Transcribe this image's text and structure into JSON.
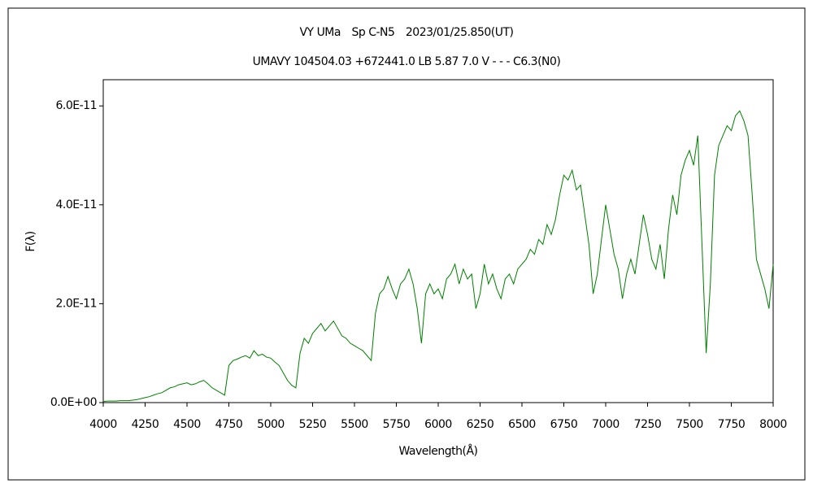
{
  "chart_data": {
    "type": "line",
    "title": "VY UMa　Sp C-N5　2023/01/25.850(UT)",
    "subtitle": "UMAVY 104504.03 +672441.0 LB 5.87 7.0 V - - - C6.3(N0)",
    "xlabel": "Wavelength(Å)",
    "ylabel": "F(λ)",
    "color": "#008000",
    "xlim": [
      4000,
      8000
    ],
    "ylim": [
      0,
      6.53e-11
    ],
    "xticks": [
      4000,
      4250,
      4500,
      4750,
      5000,
      5250,
      5500,
      5750,
      6000,
      6250,
      6500,
      6750,
      7000,
      7250,
      7500,
      7750,
      8000
    ],
    "yticks": [
      {
        "value": 0,
        "label": "0.0E+00"
      },
      {
        "value": 2e-11,
        "label": "2.0E-11"
      },
      {
        "value": 4e-11,
        "label": "4.0E-11"
      },
      {
        "value": 6e-11,
        "label": "6.0E-11"
      }
    ],
    "x": [
      4000,
      4025,
      4050,
      4075,
      4100,
      4125,
      4150,
      4175,
      4200,
      4225,
      4250,
      4275,
      4300,
      4325,
      4350,
      4375,
      4400,
      4425,
      4450,
      4475,
      4500,
      4525,
      4550,
      4575,
      4600,
      4625,
      4650,
      4675,
      4700,
      4725,
      4750,
      4775,
      4800,
      4825,
      4850,
      4875,
      4900,
      4925,
      4950,
      4975,
      5000,
      5025,
      5050,
      5075,
      5100,
      5125,
      5150,
      5175,
      5200,
      5225,
      5250,
      5275,
      5300,
      5325,
      5350,
      5375,
      5400,
      5425,
      5450,
      5475,
      5500,
      5525,
      5550,
      5575,
      5600,
      5625,
      5650,
      5675,
      5700,
      5725,
      5750,
      5775,
      5800,
      5825,
      5850,
      5875,
      5900,
      5925,
      5950,
      5975,
      6000,
      6025,
      6050,
      6075,
      6100,
      6125,
      6150,
      6175,
      6200,
      6225,
      6250,
      6275,
      6300,
      6325,
      6350,
      6375,
      6400,
      6425,
      6450,
      6475,
      6500,
      6525,
      6550,
      6575,
      6600,
      6625,
      6650,
      6675,
      6700,
      6725,
      6750,
      6775,
      6800,
      6825,
      6850,
      6875,
      6900,
      6925,
      6950,
      6975,
      7000,
      7025,
      7050,
      7075,
      7100,
      7125,
      7150,
      7175,
      7200,
      7225,
      7250,
      7275,
      7300,
      7325,
      7350,
      7375,
      7400,
      7425,
      7450,
      7475,
      7500,
      7525,
      7550,
      7575,
      7600,
      7625,
      7650,
      7675,
      7700,
      7725,
      7750,
      7775,
      7800,
      7825,
      7850,
      7875,
      7900,
      7925,
      7950,
      7975,
      8000
    ],
    "values": [
      2e-13,
      3e-13,
      3e-13,
      3e-13,
      4e-13,
      4e-13,
      4e-13,
      5e-13,
      6e-13,
      8e-13,
      1e-12,
      1.2e-12,
      1.5e-12,
      1.8e-12,
      2e-12,
      2.5e-12,
      3e-12,
      3.2e-12,
      3.6e-12,
      3.8e-12,
      4e-12,
      3.6e-12,
      3.8e-12,
      4.2e-12,
      4.5e-12,
      3.8e-12,
      3e-12,
      2.5e-12,
      2e-12,
      1.5e-12,
      7.5e-12,
      8.5e-12,
      8.8e-12,
      9.2e-12,
      9.5e-12,
      9e-12,
      1.05e-11,
      9.5e-12,
      9.8e-12,
      9.2e-12,
      9e-12,
      8.2e-12,
      7.5e-12,
      6e-12,
      4.5e-12,
      3.5e-12,
      3e-12,
      1e-11,
      1.3e-11,
      1.2e-11,
      1.4e-11,
      1.5e-11,
      1.6e-11,
      1.45e-11,
      1.55e-11,
      1.65e-11,
      1.5e-11,
      1.35e-11,
      1.3e-11,
      1.2e-11,
      1.15e-11,
      1.1e-11,
      1.05e-11,
      9.5e-12,
      8.5e-12,
      1.8e-11,
      2.2e-11,
      2.3e-11,
      2.55e-11,
      2.3e-11,
      2.1e-11,
      2.4e-11,
      2.5e-11,
      2.7e-11,
      2.4e-11,
      1.9e-11,
      1.2e-11,
      2.2e-11,
      2.4e-11,
      2.2e-11,
      2.3e-11,
      2.1e-11,
      2.5e-11,
      2.6e-11,
      2.8e-11,
      2.4e-11,
      2.7e-11,
      2.5e-11,
      2.6e-11,
      1.9e-11,
      2.2e-11,
      2.8e-11,
      2.4e-11,
      2.6e-11,
      2.3e-11,
      2.1e-11,
      2.5e-11,
      2.6e-11,
      2.4e-11,
      2.7e-11,
      2.8e-11,
      2.9e-11,
      3.1e-11,
      3e-11,
      3.3e-11,
      3.2e-11,
      3.6e-11,
      3.4e-11,
      3.7e-11,
      4.2e-11,
      4.6e-11,
      4.5e-11,
      4.7e-11,
      4.3e-11,
      4.4e-11,
      3.8e-11,
      3.2e-11,
      2.2e-11,
      2.6e-11,
      3.3e-11,
      4e-11,
      3.5e-11,
      3e-11,
      2.7e-11,
      2.1e-11,
      2.6e-11,
      2.9e-11,
      2.6e-11,
      3.2e-11,
      3.8e-11,
      3.4e-11,
      2.9e-11,
      2.7e-11,
      3.2e-11,
      2.5e-11,
      3.5e-11,
      4.2e-11,
      3.8e-11,
      4.6e-11,
      4.9e-11,
      5.1e-11,
      4.8e-11,
      5.4e-11,
      3.2e-11,
      1e-11,
      2.4e-11,
      4.6e-11,
      5.2e-11,
      5.4e-11,
      5.6e-11,
      5.5e-11,
      5.8e-11,
      5.9e-11,
      5.7e-11,
      5.4e-11,
      4.2e-11,
      2.9e-11,
      2.6e-11,
      2.3e-11,
      1.9e-11,
      2.8e-11
    ]
  }
}
